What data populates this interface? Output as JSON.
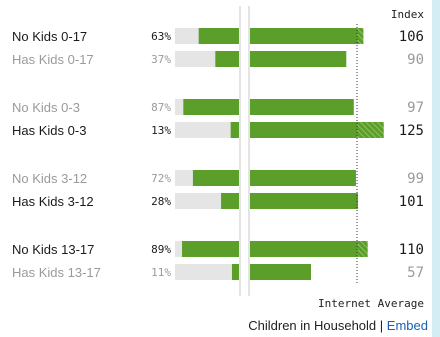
{
  "chart_data": {
    "type": "bar",
    "index_header": "Index",
    "average_label": "Internet Average",
    "groups": [
      {
        "rows": [
          {
            "label": "No Kids 0-17",
            "percent": "63%",
            "share": 63,
            "index": 106,
            "emphasis": true
          },
          {
            "label": "Has Kids 0-17",
            "percent": "37%",
            "share": 37,
            "index": 90,
            "emphasis": false
          }
        ]
      },
      {
        "rows": [
          {
            "label": "No Kids 0-3",
            "percent": "87%",
            "share": 87,
            "index": 97,
            "emphasis": false
          },
          {
            "label": "Has Kids 0-3",
            "percent": "13%",
            "share": 13,
            "index": 125,
            "emphasis": true
          }
        ]
      },
      {
        "rows": [
          {
            "label": "No Kids 3-12",
            "percent": "72%",
            "share": 72,
            "index": 99,
            "emphasis": false
          },
          {
            "label": "Has Kids 3-12",
            "percent": "28%",
            "share": 28,
            "index": 101,
            "emphasis": true
          }
        ]
      },
      {
        "rows": [
          {
            "label": "No Kids 13-17",
            "percent": "89%",
            "share": 89,
            "index": 110,
            "emphasis": true
          },
          {
            "label": "Has Kids 13-17",
            "percent": "11%",
            "share": 11,
            "index": 57,
            "emphasis": false
          }
        ]
      }
    ]
  },
  "footer": {
    "caption": "Children in Household",
    "separator": "|",
    "link": "Embed"
  },
  "colors": {
    "bar": "#5b9e2a",
    "track": "#e5e5e5",
    "text_strong": "#1a1a1a",
    "text_muted": "#9a9a9a",
    "link": "#1a5fb4",
    "border": "#d4ecf3"
  }
}
